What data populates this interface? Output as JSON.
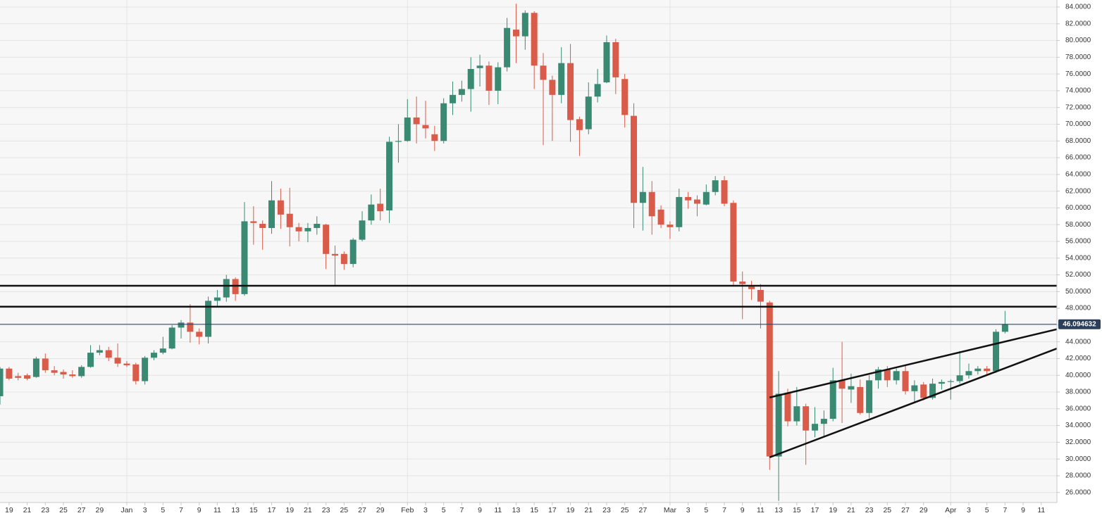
{
  "chart_data": {
    "type": "candlestick",
    "categories": [
      null,
      "19",
      null,
      "21",
      null,
      "23",
      null,
      "25",
      null,
      "27",
      null,
      "29",
      null,
      null,
      "Jan",
      null,
      "3",
      null,
      "5",
      null,
      "7",
      null,
      "9",
      null,
      "11",
      null,
      "13",
      null,
      "15",
      null,
      "17",
      null,
      "19",
      null,
      "21",
      null,
      "23",
      null,
      "25",
      null,
      "27",
      null,
      "29",
      null,
      null,
      "Feb",
      null,
      "3",
      null,
      "5",
      null,
      "7",
      null,
      "9",
      null,
      "11",
      null,
      "13",
      null,
      "15",
      null,
      "17",
      null,
      "19",
      null,
      "21",
      null,
      "23",
      null,
      "25",
      null,
      "27",
      null,
      null,
      "Mar",
      null,
      "3",
      null,
      "5",
      null,
      "7",
      null,
      "9",
      null,
      "11",
      null,
      "13",
      null,
      "15",
      null,
      "17",
      null,
      "19",
      null,
      "21",
      null,
      "23",
      null,
      "25",
      null,
      "27",
      null,
      "29",
      null,
      null,
      "Apr",
      null,
      "3",
      null,
      "5",
      null,
      "7",
      null,
      "9",
      null,
      "11",
      null
    ],
    "month_starts": [
      "Jan",
      "Feb",
      "Mar",
      "Apr"
    ],
    "up_color": "#3a8a73",
    "down_color": "#d95b49",
    "open": [
      37.5,
      40.8,
      39.9,
      40.0,
      39.8,
      42.0,
      40.6,
      40.4,
      40.1,
      39.9,
      41.0,
      42.7,
      43.0,
      42.1,
      41.4,
      41.3,
      39.3,
      42.1,
      42.7,
      43.2,
      45.7,
      46.3,
      45.2,
      44.6,
      48.9,
      49.3,
      51.5,
      49.7,
      58.4,
      58.1,
      57.6,
      60.9,
      59.3,
      57.7,
      57.2,
      57.6,
      58.0,
      54.5,
      54.5,
      53.3,
      56.2,
      58.5,
      60.5,
      59.7,
      67.9,
      68.0,
      70.8,
      69.9,
      68.8,
      68.0,
      72.5,
      73.5,
      74.2,
      76.7,
      77.0,
      74.0,
      76.8,
      81.3,
      80.5,
      83.3,
      77.0,
      75.3,
      73.5,
      77.3,
      70.6,
      69.4,
      73.3,
      75.0,
      79.8,
      75.4,
      71.0,
      60.6,
      61.9,
      59.8,
      58.0,
      57.7,
      61.3,
      61.0,
      60.4,
      61.9,
      63.3,
      60.6,
      51.2,
      50.6,
      50.2,
      48.7,
      30.3,
      37.9,
      34.5,
      36.3,
      33.4,
      34.2,
      34.8,
      39.4,
      38.3,
      38.6,
      35.5,
      39.4,
      40.7,
      39.4,
      40.5,
      38.1,
      38.9,
      37.3,
      39.0,
      39.2,
      39.3,
      40.0,
      40.5,
      40.8,
      40.5,
      45.2,
      null,
      null,
      null,
      null,
      null
    ],
    "high": [
      41.0,
      41.0,
      40.3,
      40.2,
      42.2,
      42.6,
      41.1,
      40.7,
      40.6,
      41.2,
      43.6,
      43.6,
      43.4,
      43.8,
      41.7,
      41.5,
      42.3,
      43.0,
      44.6,
      46.0,
      46.6,
      48.5,
      45.6,
      49.4,
      50.2,
      52.0,
      51.7,
      60.7,
      60.2,
      58.5,
      63.2,
      62.3,
      62.4,
      58.2,
      58.2,
      59.0,
      58.1,
      55.5,
      54.8,
      56.4,
      59.6,
      61.6,
      62.3,
      68.5,
      70.0,
      73.0,
      73.3,
      72.8,
      69.8,
      73.1,
      75.1,
      75.2,
      78.0,
      78.3,
      77.5,
      77.4,
      82.7,
      84.4,
      83.6,
      83.5,
      78.5,
      75.8,
      79.2,
      79.6,
      70.9,
      75.0,
      76.6,
      80.6,
      80.2,
      76.0,
      72.5,
      64.9,
      63.2,
      60.3,
      58.4,
      62.3,
      61.9,
      61.5,
      62.8,
      63.8,
      63.8,
      60.9,
      52.4,
      51.3,
      50.9,
      48.9,
      40.5,
      38.4,
      38.6,
      36.6,
      36.2,
      35.8,
      40.9,
      44.0,
      40.2,
      39.5,
      40.0,
      41.0,
      41.1,
      40.8,
      41.2,
      39.4,
      39.2,
      39.6,
      39.5,
      39.5,
      42.9,
      41.4,
      41.1,
      41.1,
      45.5,
      47.7,
      null,
      null,
      null,
      null,
      null
    ],
    "low": [
      36.5,
      39.4,
      39.4,
      39.4,
      39.7,
      40.3,
      40.0,
      39.6,
      39.7,
      39.7,
      40.9,
      42.4,
      41.7,
      41.0,
      41.0,
      38.9,
      38.9,
      41.8,
      42.5,
      43.1,
      44.4,
      43.9,
      43.7,
      43.8,
      48.3,
      48.8,
      48.9,
      49.5,
      55.6,
      55.0,
      56.9,
      57.5,
      55.4,
      56.0,
      55.9,
      56.8,
      52.7,
      50.8,
      52.6,
      52.9,
      56.0,
      58.0,
      58.5,
      58.2,
      65.4,
      67.9,
      67.7,
      68.3,
      66.8,
      67.7,
      71.1,
      72.7,
      71.5,
      74.5,
      72.3,
      72.4,
      76.3,
      77.3,
      78.9,
      74.2,
      67.5,
      68.0,
      72.5,
      67.9,
      66.2,
      68.8,
      72.6,
      74.9,
      73.6,
      69.6,
      57.6,
      57.3,
      56.8,
      57.6,
      56.3,
      57.2,
      59.9,
      59.0,
      60.3,
      61.5,
      60.2,
      50.6,
      46.7,
      49.0,
      45.6,
      28.7,
      25.0,
      33.9,
      34.0,
      29.3,
      32.6,
      32.6,
      34.5,
      34.3,
      36.7,
      35.3,
      34.9,
      38.4,
      38.6,
      38.9,
      37.7,
      36.8,
      37.0,
      37.1,
      38.3,
      37.1,
      39.0,
      39.6,
      40.1,
      40.1,
      40.3,
      45.0,
      null,
      null,
      null,
      null,
      null
    ],
    "close": [
      40.8,
      39.6,
      39.7,
      39.6,
      42.0,
      40.6,
      40.3,
      40.1,
      39.9,
      41.0,
      42.7,
      43.0,
      42.1,
      41.4,
      41.2,
      39.3,
      42.1,
      42.7,
      43.2,
      45.7,
      46.3,
      45.2,
      44.6,
      48.9,
      49.3,
      51.5,
      49.7,
      58.4,
      58.2,
      57.6,
      60.9,
      59.2,
      57.7,
      57.2,
      57.6,
      58.1,
      54.5,
      54.3,
      53.3,
      56.2,
      58.5,
      60.4,
      59.6,
      67.9,
      68.0,
      70.8,
      70.0,
      69.5,
      68.0,
      72.5,
      73.5,
      74.2,
      76.6,
      77.0,
      74.0,
      76.8,
      81.5,
      80.5,
      83.3,
      77.0,
      75.3,
      73.5,
      77.3,
      70.5,
      69.3,
      73.3,
      74.8,
      79.8,
      75.6,
      71.1,
      60.6,
      61.9,
      59.0,
      58.0,
      57.7,
      61.3,
      60.9,
      60.5,
      61.9,
      63.3,
      60.5,
      51.2,
      50.9,
      50.3,
      48.8,
      30.3,
      37.8,
      34.5,
      36.3,
      33.4,
      34.2,
      34.8,
      39.4,
      38.4,
      38.7,
      35.5,
      39.4,
      40.7,
      39.4,
      40.5,
      38.1,
      38.8,
      37.3,
      39.0,
      39.2,
      39.3,
      40.0,
      40.5,
      40.8,
      40.5,
      45.2,
      46.1,
      null,
      null,
      null,
      null,
      null
    ],
    "ylim": [
      24.8,
      84.84
    ],
    "yticks": [
      {
        "value": 26,
        "label": "26.0000"
      },
      {
        "value": 28,
        "label": "28.0000"
      },
      {
        "value": 30,
        "label": "30.0000"
      },
      {
        "value": 32,
        "label": "32.0000"
      },
      {
        "value": 34,
        "label": "34.0000"
      },
      {
        "value": 36,
        "label": "36.0000"
      },
      {
        "value": 38,
        "label": "38.0000"
      },
      {
        "value": 40,
        "label": "40.0000"
      },
      {
        "value": 42,
        "label": "42.0000"
      },
      {
        "value": 44,
        "label": "44.0000"
      },
      {
        "value": 46,
        "label": "46.0000"
      },
      {
        "value": 48,
        "label": "48.0000"
      },
      {
        "value": 50,
        "label": "50.0000"
      },
      {
        "value": 52,
        "label": "52.0000"
      },
      {
        "value": 54,
        "label": "54.0000"
      },
      {
        "value": 56,
        "label": "56.0000"
      },
      {
        "value": 58,
        "label": "58.0000"
      },
      {
        "value": 60,
        "label": "60.0000"
      },
      {
        "value": 62,
        "label": "62.0000"
      },
      {
        "value": 64,
        "label": "64.0000"
      },
      {
        "value": 66,
        "label": "66.0000"
      },
      {
        "value": 68,
        "label": "68.0000"
      },
      {
        "value": 70,
        "label": "70.0000"
      },
      {
        "value": 72,
        "label": "72.0000"
      },
      {
        "value": 74,
        "label": "74.0000"
      },
      {
        "value": 76,
        "label": "76.0000"
      },
      {
        "value": 78,
        "label": "78.0000"
      },
      {
        "value": 80,
        "label": "80.0000"
      },
      {
        "value": 82,
        "label": "82.0000"
      },
      {
        "value": 84,
        "label": "84.0000"
      }
    ],
    "current_price": 46.094632,
    "levels": [
      50.7,
      48.2
    ],
    "trendlines": [
      {
        "values": [
          37.35,
          45.5
        ]
      },
      {
        "values": [
          30.2,
          43.2
        ]
      }
    ],
    "grid": true
  }
}
